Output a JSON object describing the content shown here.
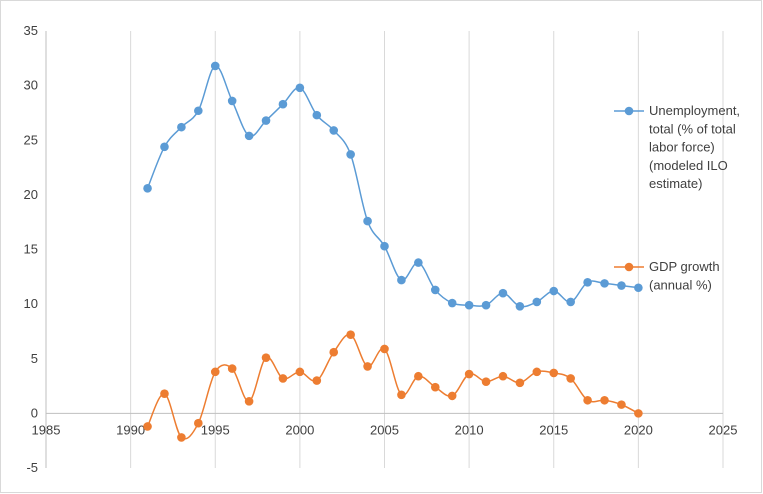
{
  "chart_data": {
    "type": "scatter",
    "title": "",
    "xlabel": "",
    "ylabel": "",
    "xlim": [
      1985,
      2025
    ],
    "ylim": [
      -5,
      35
    ],
    "x_ticks": [
      1985,
      1990,
      1995,
      2000,
      2005,
      2010,
      2015,
      2020,
      2025
    ],
    "y_ticks": [
      -5,
      0,
      5,
      10,
      15,
      20,
      25,
      30,
      35
    ],
    "grid": "vertical",
    "legend_position": "right",
    "smooth_lines": true,
    "series": [
      {
        "name": "Unemployment, total (% of total labor force) (modeled ILO estimate)",
        "legend_lines": [
          "Unemployment,",
          "total (% of total",
          "labor force)",
          "(modeled ILO",
          "estimate)"
        ],
        "color": "#5b9bd5",
        "x": [
          1991,
          1992,
          1993,
          1994,
          1995,
          1996,
          1997,
          1998,
          1999,
          2000,
          2001,
          2002,
          2003,
          2004,
          2005,
          2006,
          2007,
          2008,
          2009,
          2010,
          2011,
          2012,
          2013,
          2014,
          2015,
          2016,
          2017,
          2018,
          2019,
          2020
        ],
        "y": [
          20.6,
          24.4,
          26.2,
          27.7,
          31.8,
          28.6,
          25.4,
          26.8,
          28.3,
          29.8,
          27.3,
          25.9,
          23.7,
          17.6,
          15.3,
          12.2,
          13.8,
          11.3,
          10.1,
          9.9,
          9.9,
          11.0,
          9.8,
          10.2,
          11.2,
          10.2,
          12.0,
          11.9,
          11.7,
          11.5
        ]
      },
      {
        "name": "GDP growth (annual %)",
        "legend_lines": [
          "GDP growth",
          "(annual %)"
        ],
        "color": "#ed7d31",
        "x": [
          1991,
          1992,
          1993,
          1994,
          1995,
          1996,
          1997,
          1998,
          1999,
          2000,
          2001,
          2002,
          2003,
          2004,
          2005,
          2006,
          2007,
          2008,
          2009,
          2010,
          2011,
          2012,
          2013,
          2014,
          2015,
          2016,
          2017,
          2018,
          2019,
          2020
        ],
        "y": [
          -1.2,
          1.8,
          -2.2,
          -0.9,
          3.8,
          4.1,
          1.1,
          5.1,
          3.2,
          3.8,
          3.0,
          5.6,
          7.2,
          4.3,
          5.9,
          1.7,
          3.4,
          2.4,
          1.6,
          3.6,
          2.9,
          3.4,
          2.8,
          3.8,
          3.7,
          3.2,
          1.2,
          1.2,
          0.8,
          0.0
        ]
      }
    ]
  }
}
